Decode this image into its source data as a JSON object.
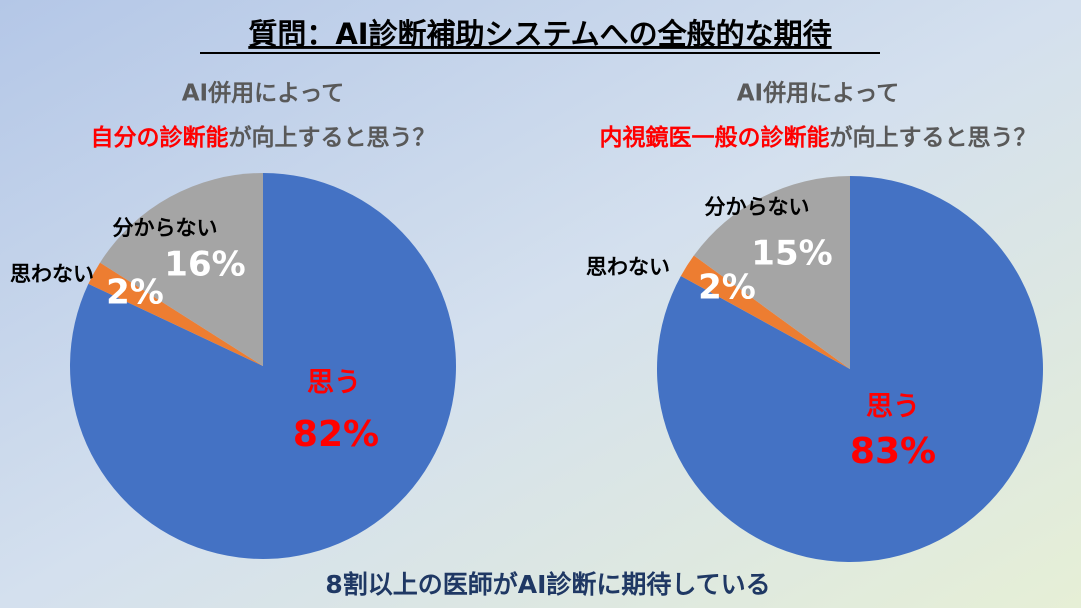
{
  "title": "質問：AI診断補助システムへの全般的な期待",
  "conclusion": "8割以上の医師がAI診断に期待している",
  "chart_data": [
    {
      "type": "pie",
      "subtitle": "AI併用によって",
      "question": {
        "highlight": "自分の診断能",
        "rest": "が向上すると思う？"
      },
      "categories": [
        "思う",
        "思わない",
        "分からない"
      ],
      "values": [
        82,
        2,
        16
      ],
      "value_labels": [
        "82%",
        "2%",
        "16%"
      ],
      "colors": [
        "#4472c4",
        "#ed7d31",
        "#a5a5a5"
      ]
    },
    {
      "type": "pie",
      "subtitle": "AI併用によって",
      "question": {
        "highlight": "内視鏡医一般の診断能",
        "rest": "が向上すると思う？"
      },
      "categories": [
        "思う",
        "思わない",
        "分からない"
      ],
      "values": [
        83,
        2,
        15
      ],
      "value_labels": [
        "83%",
        "2%",
        "15%"
      ],
      "colors": [
        "#4472c4",
        "#ed7d31",
        "#a5a5a5"
      ]
    }
  ]
}
